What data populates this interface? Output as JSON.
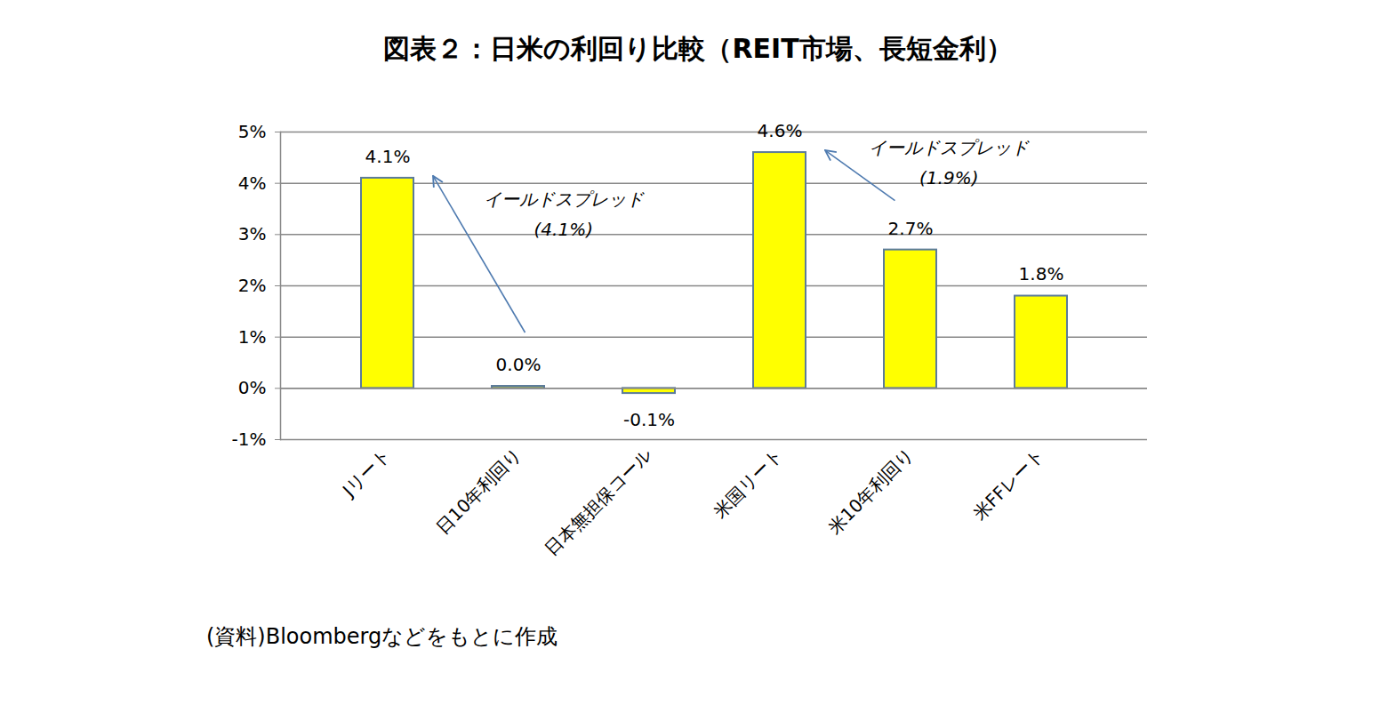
{
  "chart_data": {
    "type": "bar",
    "title": "図表２：日米の利回り比較（REIT市場、長短金利）",
    "categories": [
      "Jリート",
      "日10年利回り",
      "日本無担保コール",
      "米国リート",
      "米10年利回り",
      "米FFレート"
    ],
    "values": [
      4.1,
      0.04,
      -0.1,
      4.6,
      2.7,
      1.8
    ],
    "value_labels": [
      "4.1%",
      "0.0%",
      "-0.1%",
      "4.6%",
      "2.7%",
      "1.8%"
    ],
    "data_labels": true,
    "color": "#ffff00",
    "ylim": [
      -1,
      5
    ],
    "yticks": [
      {
        "value": -1,
        "label": "-1%"
      },
      {
        "value": 0,
        "label": "0%"
      },
      {
        "value": 1,
        "label": "1%"
      },
      {
        "value": 2,
        "label": "2%"
      },
      {
        "value": 3,
        "label": "3%"
      },
      {
        "value": 4,
        "label": "4%"
      },
      {
        "value": 5,
        "label": "5%"
      }
    ],
    "grid": true,
    "annotations": [
      {
        "text": [
          "イールドスプレッド",
          "(4.1%)"
        ],
        "from": "日10年利回り",
        "to": "Jリート"
      },
      {
        "text": [
          "イールドスプレッド",
          "(1.9%)"
        ],
        "from": "米10年利回り",
        "to": "米国リート"
      }
    ],
    "source": "(資料)Bloombergなどをもとに作成"
  }
}
